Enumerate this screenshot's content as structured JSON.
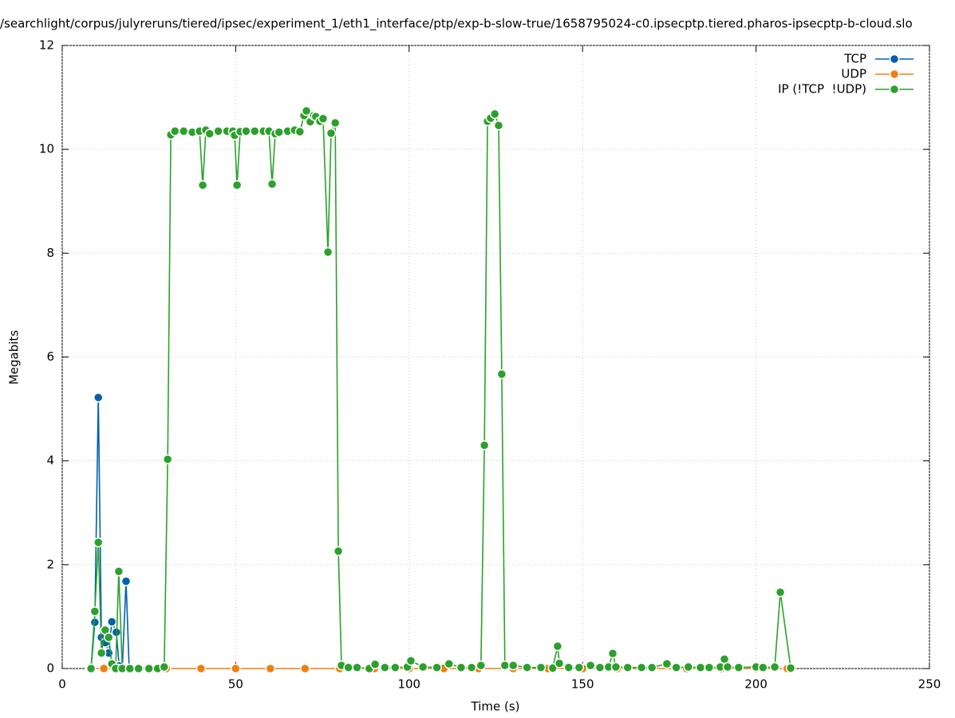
{
  "chart_data": {
    "type": "line",
    "title": "/searchlight/corpus/julyreruns/tiered/ipsec/experiment_1/eth1_interface/ptp/exp-b-slow-true/1658795024-c0.ipsecptp.tiered.pharos-ipsecptp-b-cloud.slo",
    "x_label": "Time (s)",
    "y_label": "Megabits",
    "xlim": [
      0,
      250
    ],
    "ylim": [
      0,
      12
    ],
    "xticks": [
      0,
      50,
      100,
      150,
      200,
      250
    ],
    "yticks": [
      0,
      2,
      4,
      6,
      8,
      10,
      12
    ],
    "grid": true,
    "legend": "top-right",
    "series": [
      {
        "name": "TCP",
        "color": "#0060ad",
        "x": [
          8.3,
          9.4,
          10.4,
          11.3,
          12.4,
          13.4,
          14.3,
          15.6,
          16.4,
          17.3,
          18.4,
          19.3
        ],
        "values": [
          0,
          0.89,
          5.22,
          0.6,
          0.5,
          0.3,
          0.9,
          0.7,
          0.05,
          0,
          1.68,
          0
        ]
      },
      {
        "name": "UDP",
        "color": "#f07f12",
        "x": [
          8,
          12,
          16,
          20,
          25,
          30,
          40,
          50,
          60,
          70,
          80,
          90,
          100,
          110,
          120,
          130,
          140,
          150,
          160,
          170,
          180,
          190,
          200,
          209
        ],
        "values": [
          0,
          0,
          0,
          0,
          0,
          0,
          0,
          0,
          0,
          0,
          0,
          0,
          0,
          0,
          0,
          0,
          0,
          0,
          0,
          0,
          0,
          0,
          0,
          0
        ]
      },
      {
        "name": "IP (!TCP  !UDP)",
        "color": "#2ca02c",
        "x": [
          8.3,
          9.4,
          10.4,
          11.3,
          12.4,
          13.4,
          14.3,
          15.4,
          16.3,
          17.3,
          19.5,
          22,
          25,
          27.5,
          29.4,
          30.4,
          31.3,
          32.5,
          35,
          37.5,
          39.6,
          40.5,
          41.4,
          42.5,
          45,
          47.5,
          49.2,
          49.7,
          50.4,
          51.3,
          53,
          55.5,
          58,
          59.6,
          60.5,
          61.4,
          62.5,
          65,
          67,
          68.5,
          69.7,
          70.4,
          71.5,
          72.5,
          73.1,
          74.3,
          75.2,
          76.6,
          77.5,
          78.7,
          79.6,
          80.5,
          82.5,
          85,
          88.5,
          90.2,
          93,
          96,
          99.5,
          100.5,
          104,
          108,
          111.5,
          115,
          118,
          120.7,
          121.7,
          122.6,
          123.5,
          124.7,
          125.8,
          126.7,
          127.6,
          130,
          134,
          138,
          141.4,
          142.8,
          143.3,
          146,
          149,
          152.3,
          155,
          157.5,
          158.7,
          159.6,
          163,
          167,
          170,
          174.3,
          177,
          180.5,
          184,
          186.5,
          189.7,
          190.9,
          191.8,
          195,
          200,
          202,
          205.4,
          207,
          210
        ],
        "values": [
          0,
          1.1,
          2.43,
          0.3,
          0.74,
          0.6,
          0.09,
          0,
          1.87,
          0,
          0,
          0,
          0,
          0,
          0.03,
          4.03,
          10.28,
          10.35,
          10.35,
          10.33,
          10.35,
          9.31,
          10.37,
          10.3,
          10.35,
          10.35,
          10.35,
          10.27,
          9.31,
          10.34,
          10.35,
          10.35,
          10.35,
          10.35,
          9.33,
          10.3,
          10.33,
          10.35,
          10.37,
          10.34,
          10.65,
          10.74,
          10.53,
          10.65,
          10.63,
          10.54,
          10.59,
          8.02,
          10.31,
          10.51,
          2.26,
          0.06,
          0.02,
          0.02,
          0,
          0.08,
          0.02,
          0.02,
          0.03,
          0.15,
          0.03,
          0.02,
          0.09,
          0.02,
          0.02,
          0.06,
          4.3,
          10.54,
          10.6,
          10.68,
          10.46,
          5.67,
          0.06,
          0.06,
          0.02,
          0.02,
          0.01,
          0.43,
          0.1,
          0.02,
          0.02,
          0.06,
          0.02,
          0.03,
          0.29,
          0.03,
          0.02,
          0.02,
          0.02,
          0.09,
          0.02,
          0.03,
          0.02,
          0.02,
          0.03,
          0.18,
          0.03,
          0.02,
          0.03,
          0.02,
          0.03,
          1.47,
          0.01
        ]
      }
    ]
  }
}
